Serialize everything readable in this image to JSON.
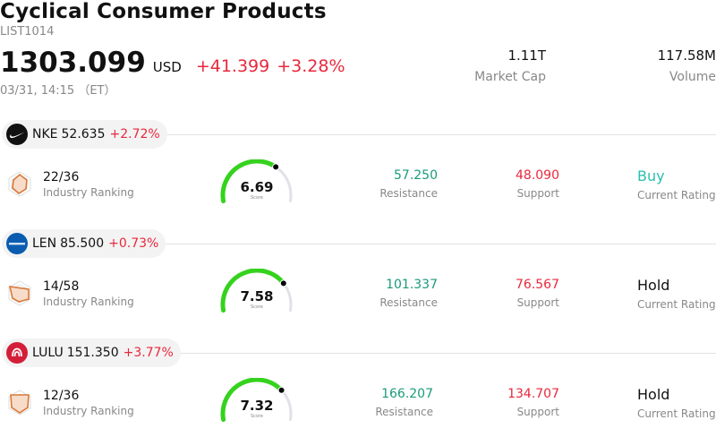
{
  "header": {
    "title": "Cyclical Consumer Products",
    "code": "LIST1014",
    "price": "1303.099",
    "currency": "USD",
    "change": "+41.399",
    "change_pct": "+3.28%",
    "timestamp": "03/31, 14:15 （ET）",
    "market_cap_value": "1.11T",
    "market_cap_label": "Market Cap",
    "volume_value": "117.58M",
    "volume_label": "Volume"
  },
  "colors": {
    "up_red": "#e8283c",
    "resistance_green": "#1a9a7a",
    "buy_teal": "#2bbfb0",
    "gauge_green": "#35d21e",
    "gauge_track": "#e1e1e8"
  },
  "stocks": [
    {
      "ticker": "NKE",
      "price": "52.635",
      "change_pct": "+2.72%",
      "logo_icon": "nike-swoosh-icon",
      "rank": "22/36",
      "rank_label": "Industry Ranking",
      "score": "6.69",
      "score_value": 6.69,
      "score_label": "Score",
      "resistance": "57.250",
      "resistance_label": "Resistance",
      "support": "48.090",
      "support_label": "Support",
      "rating": "Buy",
      "rating_label": "Current Rating"
    },
    {
      "ticker": "LEN",
      "price": "85.500",
      "change_pct": "+0.73%",
      "logo_icon": "lennar-logo-icon",
      "rank": "14/58",
      "rank_label": "Industry Ranking",
      "score": "7.58",
      "score_value": 7.58,
      "score_label": "Score",
      "resistance": "101.337",
      "resistance_label": "Resistance",
      "support": "76.567",
      "support_label": "Support",
      "rating": "Hold",
      "rating_label": "Current Rating"
    },
    {
      "ticker": "LULU",
      "price": "151.350",
      "change_pct": "+3.77%",
      "logo_icon": "lululemon-logo-icon",
      "rank": "12/36",
      "rank_label": "Industry Ranking",
      "score": "7.32",
      "score_value": 7.32,
      "score_label": "Score",
      "resistance": "166.207",
      "resistance_label": "Resistance",
      "support": "134.707",
      "support_label": "Support",
      "rating": "Hold",
      "rating_label": "Current Rating"
    }
  ]
}
